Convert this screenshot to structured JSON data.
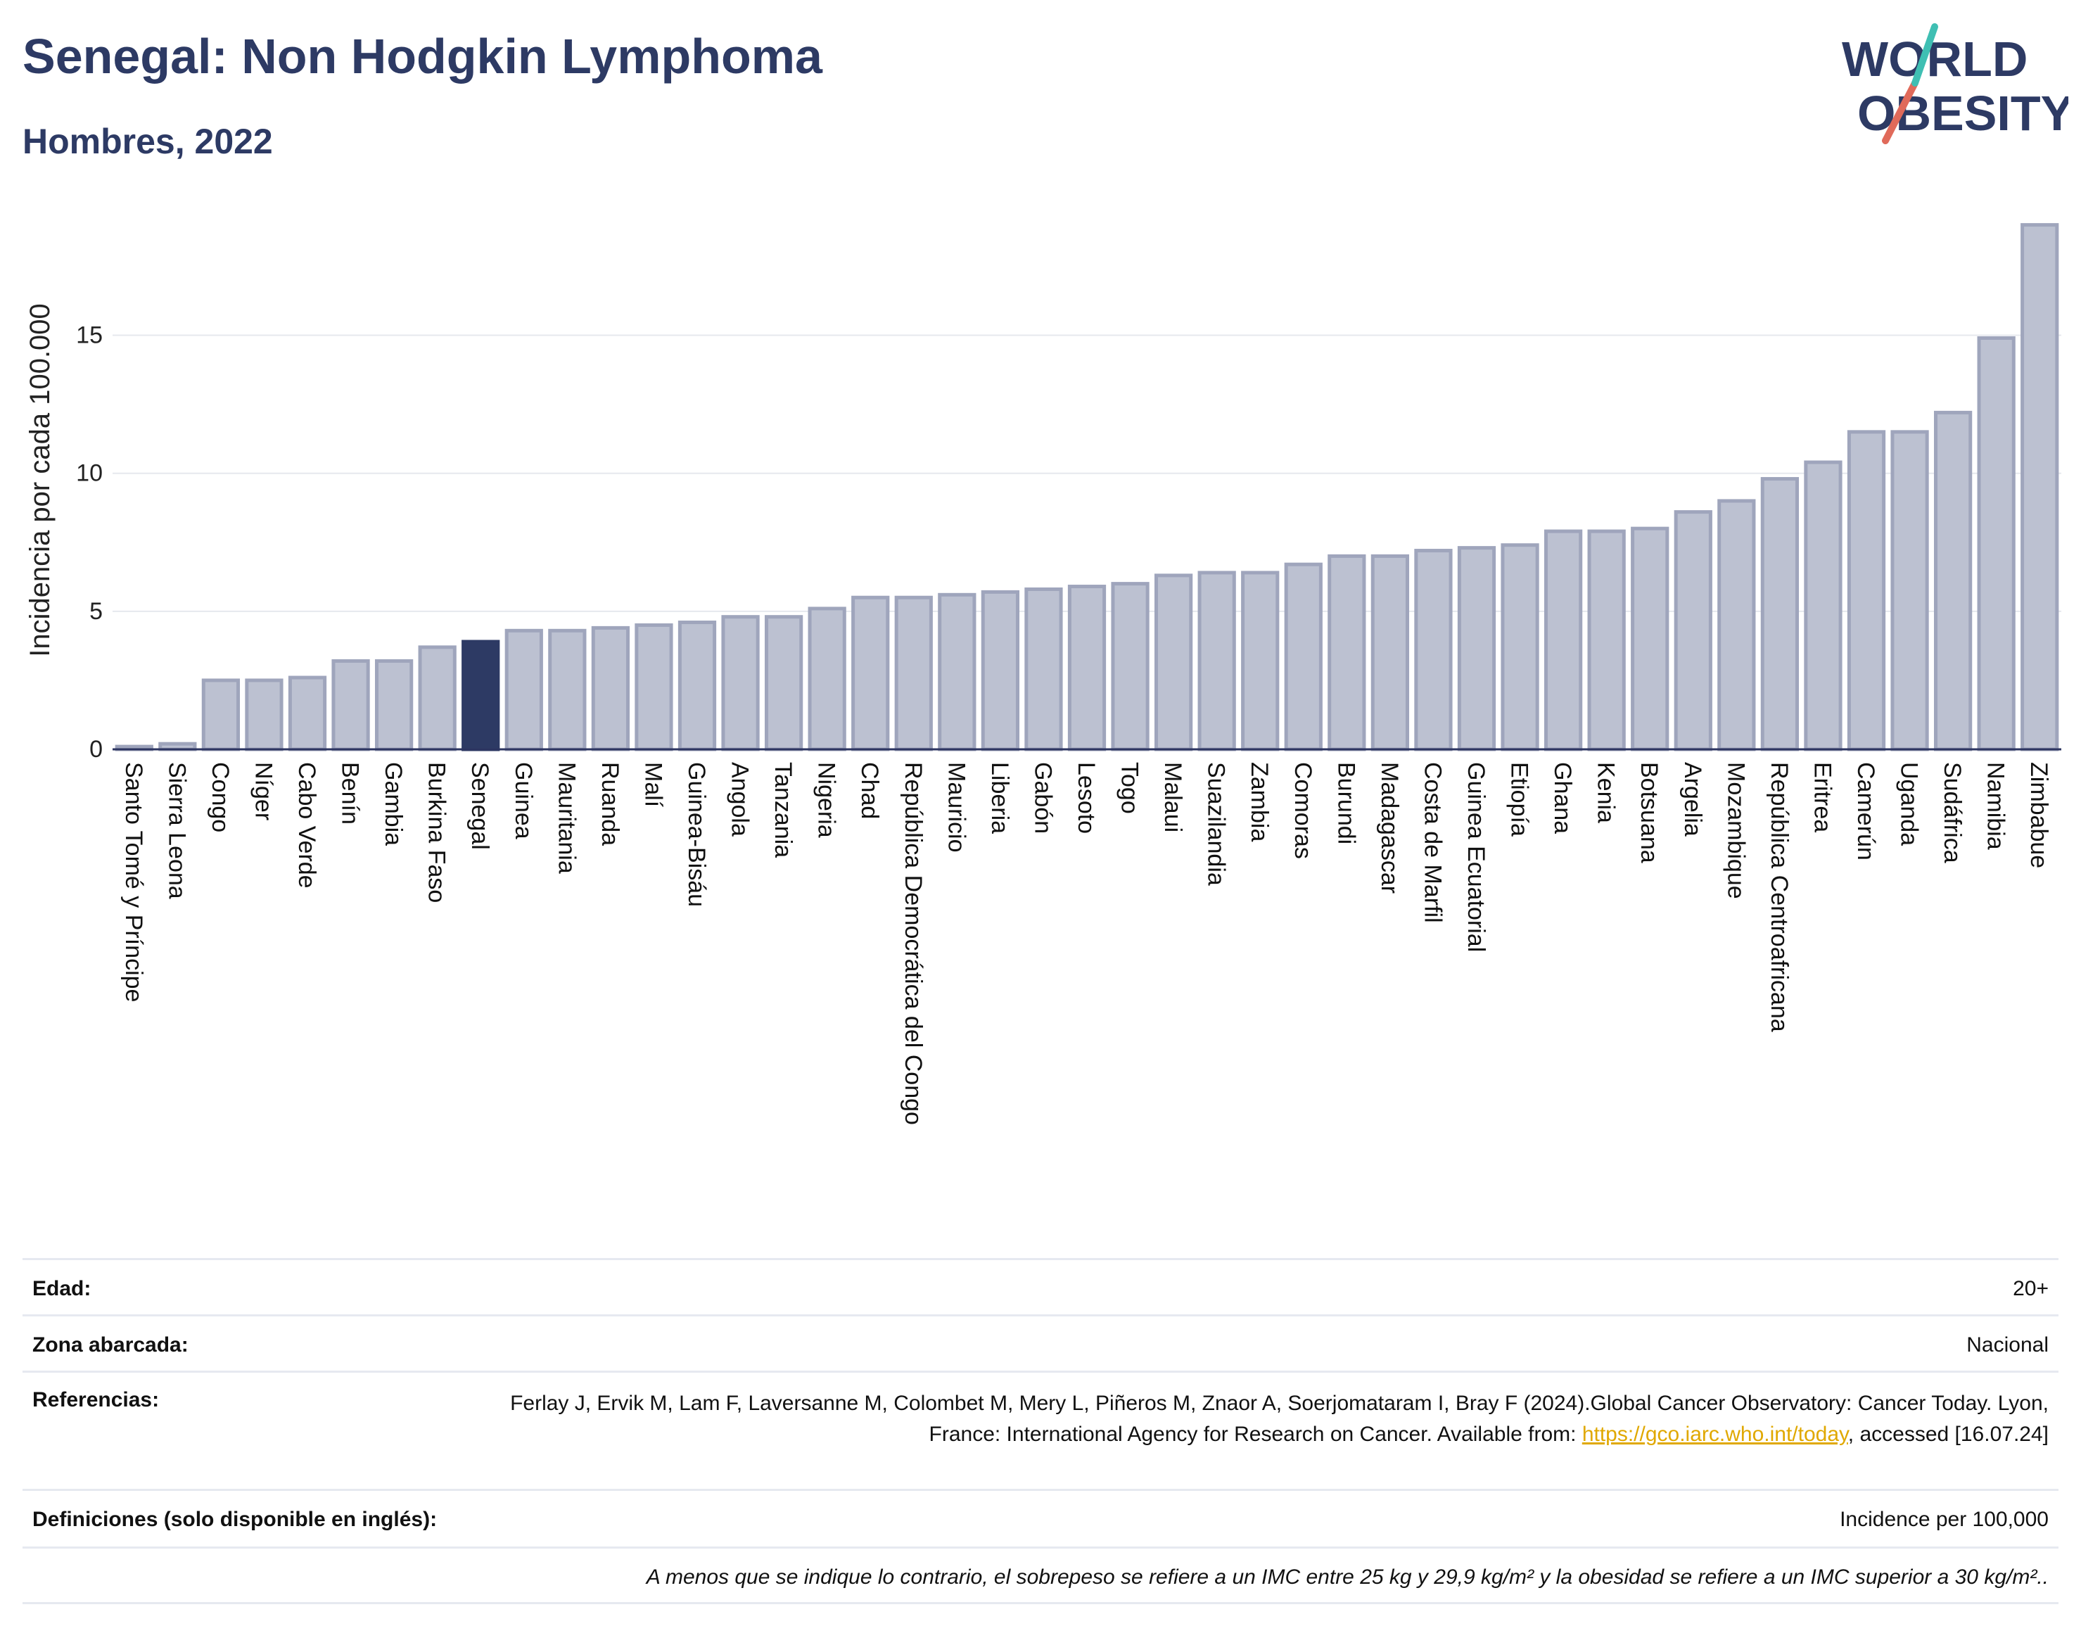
{
  "header": {
    "title": "Senegal: Non Hodgkin Lymphoma",
    "subtitle": "Hombres, 2022"
  },
  "logo": {
    "line1": "WORLD",
    "line2": "OBESITY",
    "colors": {
      "text": "#2d3a64",
      "slash_teal": "#3fbfb3",
      "slash_red": "#e06a5a"
    }
  },
  "colors": {
    "bar_fill": "#bcc1d1",
    "bar_stroke": "#9fa5bc",
    "highlight_fill": "#2d3a64",
    "gridline": "#e6e8ee",
    "axis": "#2d3561"
  },
  "chart_data": {
    "type": "bar",
    "title": "",
    "xlabel": "",
    "ylabel": "Incidencia por cada 100.000",
    "ylim": [
      0,
      19.5
    ],
    "yticks": [
      0,
      5,
      10,
      15
    ],
    "grid": true,
    "highlight": "Senegal",
    "categories": [
      "Santo Tomé y Príncipe",
      "Sierra Leona",
      "Congo",
      "Níger",
      "Cabo Verde",
      "Benín",
      "Gambia",
      "Burkina Faso",
      "Senegal",
      "Guinea",
      "Mauritania",
      "Ruanda",
      "Malí",
      "Guinea-Bisáu",
      "Angola",
      "Tanzania",
      "Nigeria",
      "Chad",
      "República Democrática del Congo",
      "Mauricio",
      "Liberia",
      "Gabón",
      "Lesoto",
      "Togo",
      "Malaui",
      "Suazilandia",
      "Zambia",
      "Comoras",
      "Burundi",
      "Madagascar",
      "Costa de Marfil",
      "Guinea Ecuatorial",
      "Etiopía",
      "Ghana",
      "Kenia",
      "Botsuana",
      "Argelia",
      "Mozambique",
      "República Centroafricana",
      "Eritrea",
      "Camerún",
      "Uganda",
      "Sudáfrica",
      "Namibia",
      "Zimbabue"
    ],
    "values": [
      0.1,
      0.2,
      2.5,
      2.5,
      2.6,
      3.2,
      3.2,
      3.7,
      3.9,
      4.3,
      4.3,
      4.4,
      4.5,
      4.6,
      4.8,
      4.8,
      5.1,
      5.5,
      5.5,
      5.6,
      5.7,
      5.8,
      5.9,
      6.0,
      6.3,
      6.4,
      6.4,
      6.7,
      7.0,
      7.0,
      7.2,
      7.3,
      7.4,
      7.9,
      7.9,
      8.0,
      8.6,
      9.0,
      9.8,
      10.4,
      11.5,
      11.5,
      12.2,
      14.9,
      19.0
    ]
  },
  "meta": {
    "age_label": "Edad:",
    "age_value": "20+",
    "zone_label": "Zona abarcada:",
    "zone_value": "Nacional",
    "refs_label": "Referencias:",
    "refs_text_1": "Ferlay J, Ervik M, Lam F, Laversanne M, Colombet M, Mery L, Piñeros M, Znaor A, Soerjomataram I, Bray F (2024).Global Cancer Observatory: Cancer Today. Lyon, France: International Agency for Research on Cancer. Available from: ",
    "refs_link": "https://gco.iarc.who.int/today",
    "refs_text_2": ", accessed [16.07.24]",
    "defs_label": "Definiciones (solo disponible en inglés):",
    "defs_value": "Incidence per 100,000",
    "footnote": "A menos que se indique lo contrario, el sobrepeso se refiere a un IMC entre 25 kg y 29,9 kg/m² y la obesidad se refiere a un IMC superior a 30 kg/m².."
  }
}
